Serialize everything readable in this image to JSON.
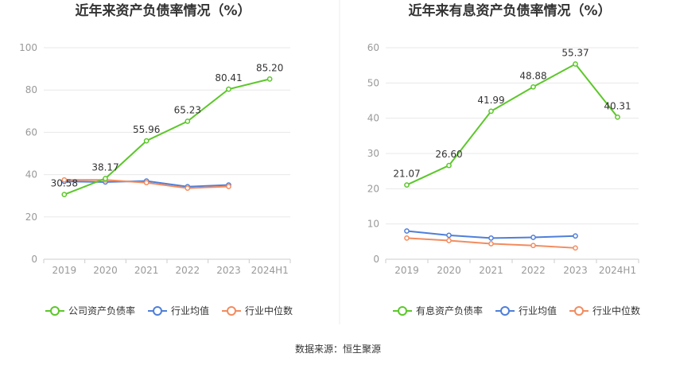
{
  "source_note": "数据来源：恒生聚源",
  "colors": {
    "main": "#5cc72a",
    "avg": "#4f7fd9",
    "median": "#f28c5f",
    "grid": "#e8e8e8",
    "axis": "#cccccc",
    "divider": "#eeeeee"
  },
  "chart_data": [
    {
      "type": "line",
      "title": "近年来资产负债率情况（%）",
      "categories": [
        "2019",
        "2020",
        "2021",
        "2022",
        "2023",
        "2024H1"
      ],
      "yticks": [
        "0",
        "20",
        "40",
        "60",
        "80",
        "100"
      ],
      "ylim": [
        0,
        100
      ],
      "grid": true,
      "legend_position": "bottom",
      "series": [
        {
          "name": "公司资产负债率",
          "role": "main",
          "values": [
            30.58,
            38.17,
            55.96,
            65.23,
            80.41,
            85.2
          ],
          "labels": [
            "30.58",
            "38.17",
            "55.96",
            "65.23",
            "80.41",
            "85.20"
          ]
        },
        {
          "name": "行业均值",
          "role": "avg",
          "values": [
            36.8,
            36.5,
            37.0,
            34.3,
            35.1,
            null
          ]
        },
        {
          "name": "行业中位数",
          "role": "median",
          "values": [
            37.5,
            37.5,
            36.2,
            33.6,
            34.4,
            null
          ]
        }
      ]
    },
    {
      "type": "line",
      "title": "近年来有息资产负债率情况（%）",
      "categories": [
        "2019",
        "2020",
        "2021",
        "2022",
        "2023",
        "2024H1"
      ],
      "yticks": [
        "0",
        "10",
        "20",
        "30",
        "40",
        "50",
        "60"
      ],
      "ylim": [
        0,
        60
      ],
      "grid": true,
      "legend_position": "bottom",
      "series": [
        {
          "name": "有息资产负债率",
          "role": "main",
          "values": [
            21.07,
            26.6,
            41.99,
            48.88,
            55.37,
            40.31
          ],
          "labels": [
            "21.07",
            "26.60",
            "41.99",
            "48.88",
            "55.37",
            "40.31"
          ]
        },
        {
          "name": "行业均值",
          "role": "avg",
          "values": [
            8.0,
            6.8,
            6.0,
            6.2,
            6.6,
            null
          ]
        },
        {
          "name": "行业中位数",
          "role": "median",
          "values": [
            6.0,
            5.3,
            4.4,
            3.9,
            3.2,
            null
          ]
        }
      ]
    }
  ]
}
